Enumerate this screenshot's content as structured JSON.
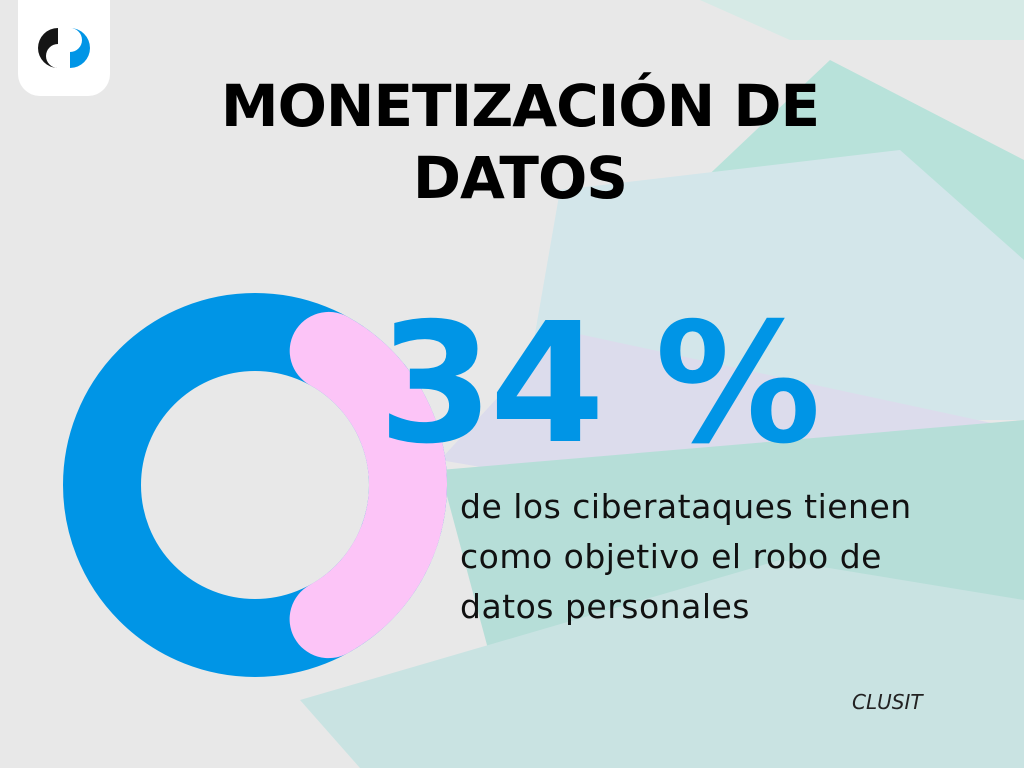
{
  "title_lines": [
    "MONETIZACIÓN DE",
    "DATOS"
  ],
  "stat": {
    "value": "34 %",
    "description_lines": [
      "de los ciberataques tienen",
      "como objetivo el robo de",
      "datos personales"
    ]
  },
  "source": "CLUSIT",
  "logo_icon": "brand-logo-icon",
  "colors": {
    "background": "#e8e8e8",
    "accent_blue": "#0095e6",
    "accent_pink": "#fcc4f7",
    "teal_shape": "#b3dfd9",
    "lavender_shape": "#dcdcec"
  },
  "chart_data": {
    "type": "pie",
    "variant": "donut",
    "values": [
      34,
      66
    ],
    "series_colors": [
      "#fcc4f7",
      "#0095e6"
    ]
  }
}
